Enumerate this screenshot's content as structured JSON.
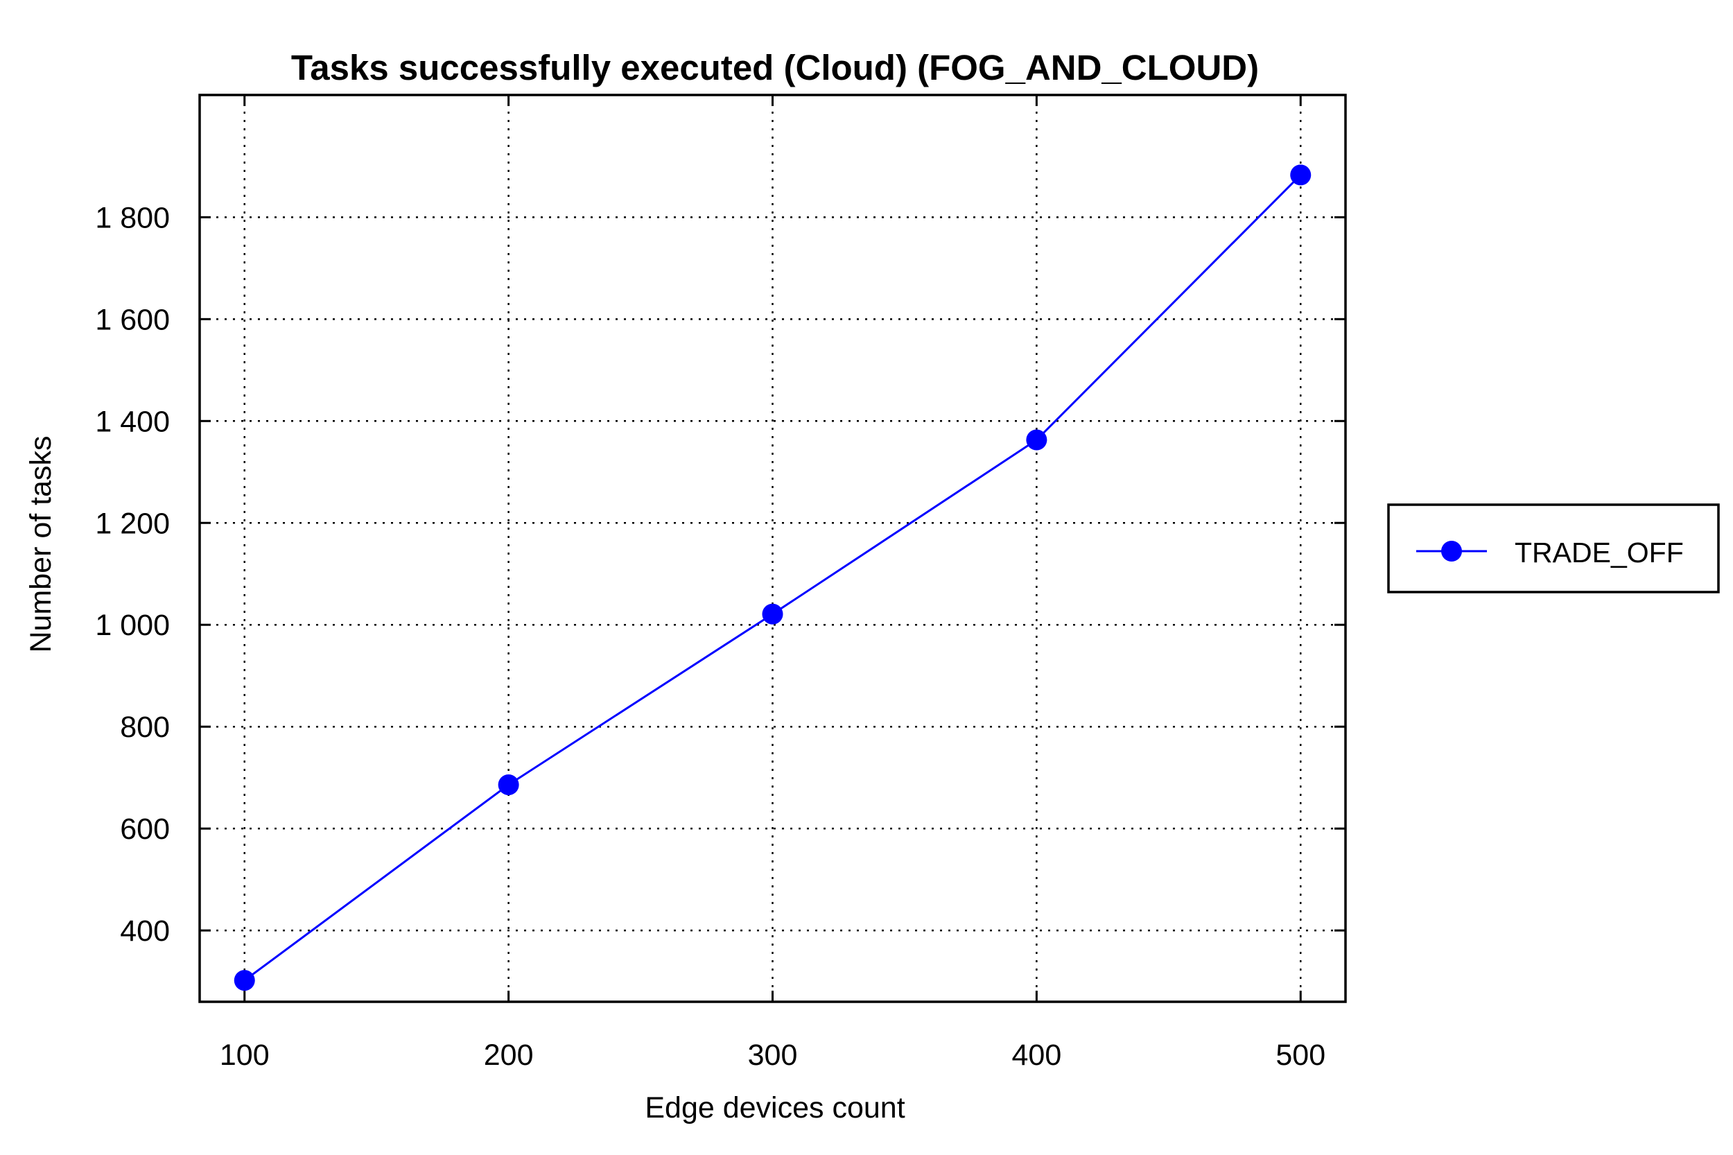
{
  "chart_data": {
    "type": "line",
    "title": "Tasks successfully executed (Cloud) (FOG_AND_CLOUD)",
    "xlabel": "Edge devices count",
    "ylabel": "Number of tasks",
    "x": [
      100,
      200,
      300,
      400,
      500
    ],
    "x_tick_labels": [
      "100",
      "200",
      "300",
      "400",
      "500"
    ],
    "xlim": [
      83,
      517
    ],
    "ylim": [
      260,
      2040
    ],
    "y_ticks": [
      400,
      600,
      800,
      1000,
      1200,
      1400,
      1600,
      1800
    ],
    "y_tick_labels": [
      "400",
      "600",
      "800",
      "1 000",
      "1 200",
      "1 400",
      "1 600",
      "1 800"
    ],
    "series": [
      {
        "name": "TRADE_OFF",
        "color": "#0000ff",
        "marker": "circle",
        "values": [
          302,
          686,
          1021,
          1363,
          1883
        ]
      }
    ],
    "grid": true,
    "legend_position": "right"
  }
}
